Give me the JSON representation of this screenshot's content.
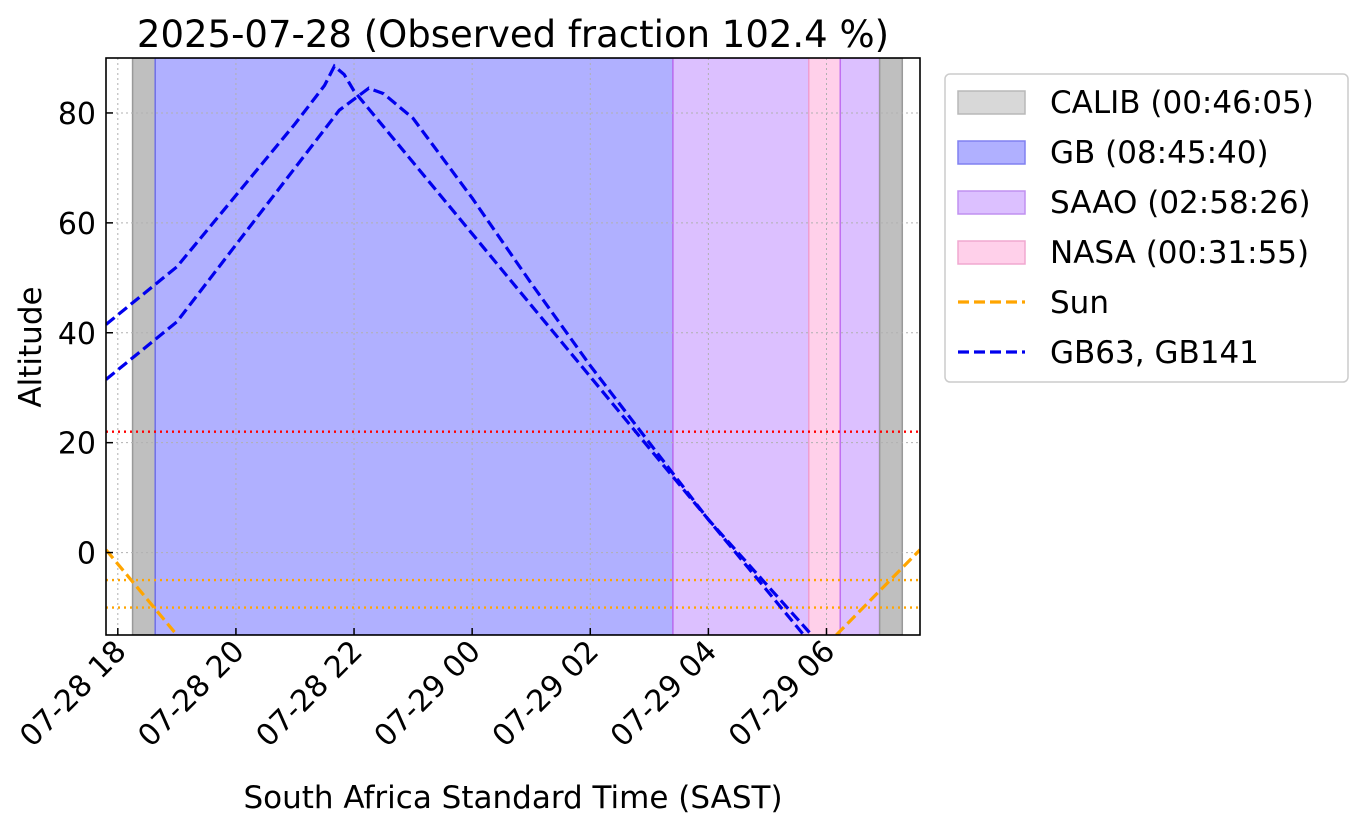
{
  "chart_data": {
    "type": "line",
    "title": "2025-07-28 (Observed fraction 102.4 %)",
    "xlabel": "South Africa Standard Time (SAST)",
    "ylabel": "Altitude",
    "x_unit": "datetime SAST",
    "xlim": [
      "2025-07-28 17:48",
      "2025-07-29 07:35"
    ],
    "ylim": [
      -15,
      90
    ],
    "x_ticks": [
      {
        "value": "2025-07-28 18:00",
        "label": "07-28 18"
      },
      {
        "value": "2025-07-28 20:00",
        "label": "07-28 20"
      },
      {
        "value": "2025-07-28 22:00",
        "label": "07-28 22"
      },
      {
        "value": "2025-07-29 00:00",
        "label": "07-29 00"
      },
      {
        "value": "2025-07-29 02:00",
        "label": "07-29 02"
      },
      {
        "value": "2025-07-29 04:00",
        "label": "07-29 04"
      },
      {
        "value": "2025-07-29 06:00",
        "label": "07-29 06"
      }
    ],
    "y_ticks": [
      {
        "value": 0,
        "label": "0"
      },
      {
        "value": 20,
        "label": "20"
      },
      {
        "value": 40,
        "label": "40"
      },
      {
        "value": 60,
        "label": "60"
      },
      {
        "value": 80,
        "label": "80"
      }
    ],
    "grid": true,
    "legend_position": "outside right, top",
    "spans": [
      {
        "name": "CALIB (00:46:05)",
        "start": "2025-07-28 18:15",
        "end": "2025-07-28 18:38",
        "fill": "#bfbfbf",
        "edge": "#999999"
      },
      {
        "name": "GB (08:45:40)",
        "start": "2025-07-28 18:38",
        "end": "2025-07-29 03:24",
        "fill": "#b0b0ff",
        "edge": "#7070e8"
      },
      {
        "name": "SAAO (02:58:26)",
        "start": "2025-07-29 03:24",
        "end": "2025-07-29 05:42",
        "fill": "#dcc0ff",
        "edge": "#c070f0"
      },
      {
        "name": "NASA (00:31:55)",
        "start": "2025-07-29 05:42",
        "end": "2025-07-29 06:14",
        "fill": "#ffd0ea",
        "edge": "#f0a0d0"
      },
      {
        "name": "SAAO (02:58:26)",
        "start": "2025-07-29 06:14",
        "end": "2025-07-29 06:54",
        "fill": "#dcc0ff",
        "edge": "#c070f0"
      },
      {
        "name": "CALIB (00:46:05)",
        "start": "2025-07-29 06:54",
        "end": "2025-07-29 07:17",
        "fill": "#bfbfbf",
        "edge": "#999999"
      }
    ],
    "hlines": [
      {
        "y": 22,
        "color": "#ff0000"
      },
      {
        "y": -5,
        "color": "#ffa500"
      },
      {
        "y": -10,
        "color": "#ffa500"
      }
    ],
    "series": [
      {
        "name": "Sun",
        "color": "#ffa500",
        "style": "dashed",
        "segments": [
          [
            [
              "2025-07-28 17:48",
              0.5
            ],
            [
              "2025-07-28 19:00",
              -15
            ]
          ],
          [
            [
              "2025-07-29 06:10",
              -15
            ],
            [
              "2025-07-29 07:35",
              0.5
            ]
          ]
        ]
      },
      {
        "name": "GB63, GB141",
        "color": "#0000ee",
        "style": "dashed",
        "segments": [
          [
            [
              "2025-07-28 17:48",
              41.5
            ],
            [
              "2025-07-28 19:00",
              52
            ],
            [
              "2025-07-28 20:00",
              65
            ],
            [
              "2025-07-28 21:00",
              78
            ],
            [
              "2025-07-28 21:30",
              85
            ],
            [
              "2025-07-28 21:40",
              88.5
            ],
            [
              "2025-07-28 21:50",
              87
            ],
            [
              "2025-07-28 22:00",
              84
            ],
            [
              "2025-07-28 23:00",
              71
            ],
            [
              "2025-07-29 00:00",
              58
            ],
            [
              "2025-07-29 01:00",
              45
            ],
            [
              "2025-07-29 02:00",
              32
            ],
            [
              "2025-07-29 03:00",
              19
            ],
            [
              "2025-07-29 04:00",
              6
            ],
            [
              "2025-07-29 05:00",
              -7
            ],
            [
              "2025-07-29 06:00",
              -20
            ]
          ],
          [
            [
              "2025-07-28 17:48",
              31.5
            ],
            [
              "2025-07-28 19:00",
              42
            ],
            [
              "2025-07-28 20:00",
              56
            ],
            [
              "2025-07-28 21:00",
              70
            ],
            [
              "2025-07-28 21:45",
              80.5
            ],
            [
              "2025-07-28 22:15",
              84.5
            ],
            [
              "2025-07-28 22:30",
              83.5
            ],
            [
              "2025-07-28 23:00",
              79
            ],
            [
              "2025-07-29 00:00",
              64.5
            ],
            [
              "2025-07-29 01:00",
              49
            ],
            [
              "2025-07-29 02:00",
              34
            ],
            [
              "2025-07-29 03:00",
              20
            ],
            [
              "2025-07-29 04:00",
              6
            ],
            [
              "2025-07-29 05:00",
              -6
            ],
            [
              "2025-07-29 06:00",
              -18
            ]
          ]
        ]
      }
    ],
    "legend": [
      {
        "label": "CALIB (00:46:05)",
        "kind": "patch",
        "fill": "#d8d8d8",
        "edge": "#b8b8b8"
      },
      {
        "label": "GB (08:45:40)",
        "kind": "patch",
        "fill": "#b0b0ff",
        "edge": "#8080f0"
      },
      {
        "label": "SAAO (02:58:26)",
        "kind": "patch",
        "fill": "#dcc0ff",
        "edge": "#c090f0"
      },
      {
        "label": "NASA (00:31:55)",
        "kind": "patch",
        "fill": "#ffd0ea",
        "edge": "#f0a8d0"
      },
      {
        "label": "Sun",
        "kind": "line",
        "color": "#ffa500"
      },
      {
        "label": "GB63, GB141",
        "kind": "line",
        "color": "#0000ee"
      }
    ]
  }
}
